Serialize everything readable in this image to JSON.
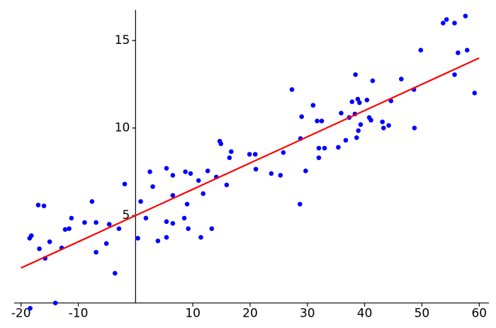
{
  "chart_data": {
    "type": "scatter",
    "x": [
      -18.4,
      -18.5,
      -18.2,
      -17.0,
      -16.0,
      -16.8,
      -15.8,
      -15.0,
      -14.0,
      -12.9,
      -12.3,
      -11.6,
      -11.2,
      -8.9,
      -7.6,
      -6.9,
      -6.9,
      -5.1,
      -4.6,
      -3.6,
      -2.9,
      -1.9,
      0.4,
      0.9,
      1.8,
      2.5,
      3.0,
      3.9,
      5.4,
      5.4,
      5.4,
      6.5,
      6.5,
      6.5,
      8.5,
      8.7,
      9.0,
      9.2,
      9.6,
      11.0,
      11.4,
      11.8,
      12.6,
      13.3,
      14.1,
      14.7,
      14.9,
      15.9,
      16.4,
      16.7,
      19.9,
      20.9,
      21.0,
      23.7,
      25.3,
      25.8,
      27.3,
      28.7,
      28.8,
      29.0,
      29.7,
      31.0,
      31.7,
      32.0,
      32.0,
      32.5,
      33.0,
      35.4,
      35.9,
      36.7,
      37.3,
      37.8,
      38.3,
      38.4,
      38.6,
      38.8,
      38.9,
      39.1,
      39.3,
      40.4,
      40.8,
      41.1,
      41.4,
      43.1,
      43.3,
      44.2,
      44.6,
      46.4,
      48.6,
      48.7,
      49.8,
      53.7,
      54.3,
      55.7,
      55.7,
      56.3,
      57.6,
      57.9,
      59.2
    ],
    "values": [
      -0.3,
      3.7,
      3.85,
      5.6,
      5.55,
      3.1,
      2.55,
      3.5,
      0.0,
      3.15,
      4.2,
      4.25,
      4.85,
      4.6,
      5.8,
      4.6,
      2.9,
      3.4,
      4.5,
      1.7,
      4.25,
      6.8,
      3.7,
      5.8,
      4.85,
      7.5,
      6.65,
      3.55,
      7.7,
      4.65,
      3.75,
      7.3,
      6.15,
      4.55,
      4.85,
      7.5,
      5.65,
      4.25,
      7.4,
      7.0,
      3.75,
      6.25,
      7.55,
      4.25,
      7.2,
      9.25,
      9.1,
      6.75,
      8.3,
      8.65,
      8.5,
      8.5,
      7.65,
      7.4,
      7.3,
      8.6,
      12.2,
      5.65,
      9.4,
      10.65,
      7.55,
      11.3,
      10.4,
      8.3,
      8.85,
      10.4,
      8.85,
      8.9,
      10.85,
      9.3,
      10.6,
      11.5,
      10.8,
      13.05,
      9.45,
      11.65,
      9.85,
      11.45,
      10.2,
      11.6,
      10.6,
      10.45,
      12.7,
      10.35,
      10.0,
      10.15,
      11.55,
      12.8,
      12.2,
      10.0,
      14.45,
      16.0,
      16.2,
      16.0,
      13.05,
      14.3,
      16.4,
      14.45,
      12.0
    ],
    "color": "#0000ff",
    "line": {
      "x": [
        -20,
        60
      ],
      "values": [
        2,
        14
      ],
      "color": "#ff0000"
    },
    "xlim": [
      -21.2,
      61.7
    ],
    "ylim": [
      -0.7,
      16.75
    ],
    "xticks": [
      -20,
      -10,
      10,
      20,
      30,
      40,
      50,
      60
    ],
    "yticks": [
      5,
      10,
      15
    ],
    "grid": false
  }
}
